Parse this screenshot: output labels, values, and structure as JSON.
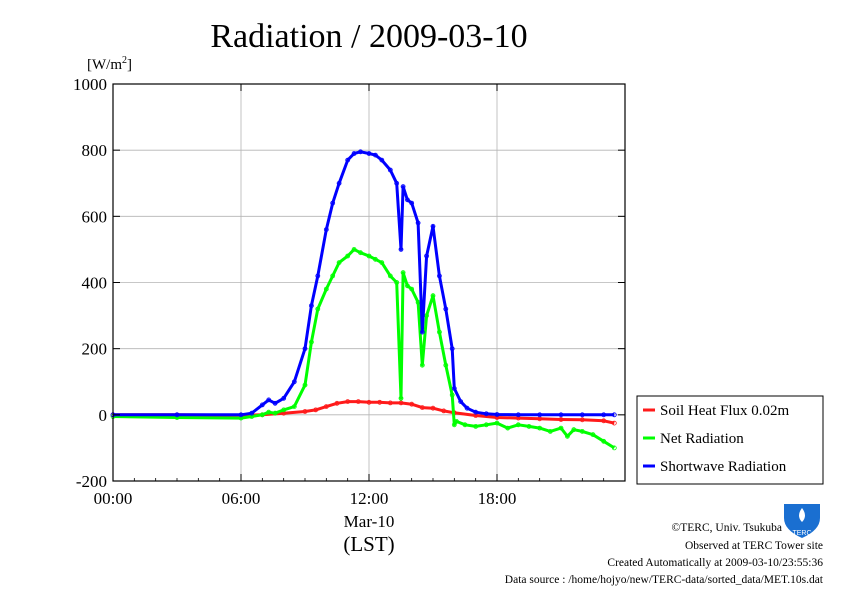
{
  "chart_data": {
    "type": "line",
    "title": "Radiation / 2009-03-10",
    "ylabel": "[W/m²]",
    "ylabel_base": "[W/m",
    "ylabel_sup": "2",
    "ylabel_end": "]",
    "ylim": [
      -200,
      1000
    ],
    "yticks": [
      -200,
      0,
      200,
      400,
      600,
      800,
      1000
    ],
    "ytick_labels": [
      "-200",
      "0",
      "200",
      "400",
      "600",
      "800",
      "1000"
    ],
    "xlim": [
      0,
      24
    ],
    "xticks": [
      0,
      6,
      12,
      18
    ],
    "xtick_labels": [
      "00:00",
      "06:00",
      "12:00",
      "18:00"
    ],
    "xlabel_date": "Mar-10",
    "xlabel": "(LST)",
    "grid": true,
    "legend_position": "right",
    "series": [
      {
        "name": "Soil Heat Flux 0.02m",
        "color": "#ff1a1a",
        "x": [
          0,
          3,
          6,
          7,
          8,
          9,
          9.5,
          10,
          10.5,
          11,
          11.5,
          12,
          12.5,
          13,
          13.5,
          14,
          14.5,
          15,
          15.5,
          16,
          17,
          18,
          19,
          20,
          21,
          22,
          23,
          23.5
        ],
        "y": [
          0,
          0,
          -1,
          0,
          5,
          10,
          15,
          25,
          35,
          40,
          40,
          38,
          38,
          36,
          36,
          32,
          22,
          20,
          12,
          6,
          -2,
          -8,
          -10,
          -12,
          -14,
          -15,
          -18,
          -25
        ]
      },
      {
        "name": "Net Radiation",
        "color": "#00ff00",
        "x": [
          0,
          3,
          6,
          6.5,
          7,
          7.3,
          7.6,
          8,
          8.5,
          9,
          9.3,
          9.6,
          10,
          10.3,
          10.6,
          11,
          11.3,
          11.6,
          12,
          12.3,
          12.6,
          13,
          13.3,
          13.5,
          13.6,
          13.8,
          14,
          14.3,
          14.5,
          14.7,
          15,
          15.3,
          15.6,
          15.9,
          16,
          16.1,
          16.5,
          17,
          17.5,
          18,
          18.5,
          19,
          19.5,
          20,
          20.5,
          21,
          21.3,
          21.6,
          22,
          22.5,
          23,
          23.5
        ],
        "y": [
          -5,
          -8,
          -10,
          -5,
          0,
          8,
          5,
          15,
          25,
          90,
          220,
          320,
          380,
          420,
          460,
          480,
          500,
          490,
          480,
          470,
          460,
          420,
          400,
          50,
          430,
          390,
          380,
          340,
          150,
          300,
          360,
          250,
          150,
          60,
          -30,
          -20,
          -30,
          -35,
          -30,
          -25,
          -40,
          -30,
          -35,
          -40,
          -50,
          -40,
          -65,
          -45,
          -50,
          -60,
          -80,
          -100
        ]
      },
      {
        "name": "Shortwave Radiation",
        "color": "#0000ff",
        "x": [
          0,
          3,
          6,
          6.5,
          7,
          7.3,
          7.6,
          8,
          8.5,
          9,
          9.3,
          9.6,
          10,
          10.3,
          10.6,
          11,
          11.3,
          11.6,
          12,
          12.3,
          12.6,
          13,
          13.3,
          13.5,
          13.6,
          13.8,
          14,
          14.3,
          14.5,
          14.7,
          15,
          15.3,
          15.6,
          15.9,
          16,
          16.3,
          16.6,
          17,
          17.5,
          18,
          19,
          20,
          21,
          22,
          23,
          23.5
        ],
        "y": [
          0,
          0,
          0,
          5,
          30,
          45,
          35,
          50,
          100,
          200,
          330,
          420,
          560,
          640,
          700,
          770,
          790,
          795,
          790,
          785,
          770,
          740,
          700,
          500,
          690,
          650,
          640,
          580,
          250,
          480,
          570,
          420,
          320,
          200,
          80,
          40,
          20,
          8,
          3,
          1,
          0,
          0,
          0,
          0,
          0,
          0
        ]
      }
    ]
  },
  "credits": {
    "copyright": "©TERC, Univ. Tsukuba",
    "observed": "Observed at TERC Tower site",
    "created": "Created Automatically at 2009-03-10/23:55:36",
    "source": "Data source : /home/hojyo/new/TERC-data/sorted_data/MET.10s.dat"
  },
  "logo": {
    "text": "TERC",
    "color": "#1a6fd1"
  }
}
